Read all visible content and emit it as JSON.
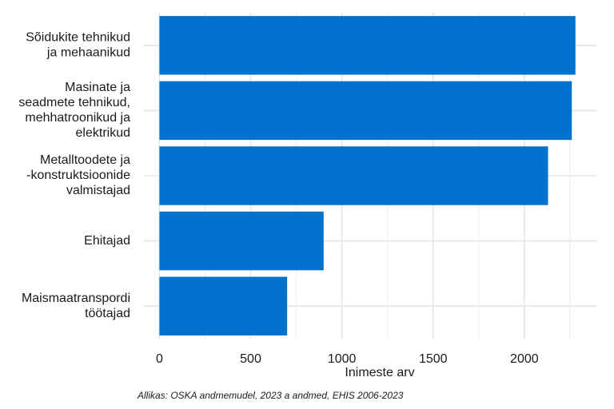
{
  "chart_data": {
    "type": "bar",
    "orientation": "horizontal",
    "categories": [
      [
        "Sõidukite tehnikud",
        "ja mehaanikud"
      ],
      [
        "Masinate ja",
        "seadmete tehnikud,",
        "mehhatroonikud ja",
        "elektrikud"
      ],
      [
        "Metalltoodete ja",
        "-konstruktsioonide",
        "valmistajad"
      ],
      [
        "Ehitajad"
      ],
      [
        "Maismaatranspordi",
        "töötajad"
      ]
    ],
    "values": [
      2280,
      2260,
      2130,
      900,
      700
    ],
    "color": "#0072ce",
    "xlim": [
      -85,
      2395
    ],
    "xticks": [
      0,
      500,
      1000,
      1500,
      2000
    ],
    "xminorticks": [
      250,
      750,
      1250,
      1750,
      2250
    ],
    "xlabel": "Inimeste arv",
    "caption": "Allikas: OSKA andmemudel, 2023 a andmed, EHIS 2006-2023",
    "grid": true
  }
}
